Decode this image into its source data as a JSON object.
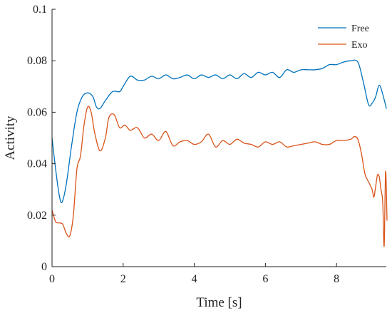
{
  "chart_data": {
    "type": "line",
    "title": "",
    "xlabel": "Time [s]",
    "ylabel": "Activity",
    "xlim": [
      0,
      9.4
    ],
    "ylim": [
      0,
      0.1
    ],
    "xticks": [
      0,
      2,
      4,
      6,
      8
    ],
    "xtick_labels": [
      "0",
      "2",
      "4",
      "6",
      "8"
    ],
    "yticks": [
      0,
      0.02,
      0.04,
      0.06,
      0.08,
      0.1
    ],
    "ytick_labels": [
      "0",
      "0.02",
      "0.04",
      "0.06",
      "0.08",
      "0.1"
    ],
    "grid": false,
    "legend_position": "top-right",
    "series": [
      {
        "name": "Free",
        "color": "#0072BD",
        "x": [
          0,
          0.1,
          0.2,
          0.28,
          0.4,
          0.55,
          0.7,
          0.85,
          1.0,
          1.15,
          1.25,
          1.35,
          1.5,
          1.7,
          1.9,
          2.0,
          2.2,
          2.4,
          2.6,
          2.8,
          3.0,
          3.2,
          3.4,
          3.6,
          3.8,
          4.0,
          4.2,
          4.4,
          4.6,
          4.8,
          5.0,
          5.2,
          5.4,
          5.6,
          5.8,
          6.0,
          6.2,
          6.4,
          6.6,
          6.8,
          7.0,
          7.2,
          7.4,
          7.6,
          7.8,
          8.0,
          8.2,
          8.4,
          8.6,
          8.75,
          8.9,
          9.0,
          9.1,
          9.2,
          9.3,
          9.4
        ],
        "values": [
          0.05,
          0.038,
          0.028,
          0.025,
          0.032,
          0.047,
          0.06,
          0.066,
          0.0675,
          0.066,
          0.062,
          0.0615,
          0.0645,
          0.068,
          0.068,
          0.07,
          0.074,
          0.0725,
          0.0725,
          0.074,
          0.073,
          0.0745,
          0.073,
          0.0735,
          0.0745,
          0.073,
          0.0745,
          0.0735,
          0.0745,
          0.073,
          0.0745,
          0.073,
          0.075,
          0.0735,
          0.0755,
          0.0745,
          0.0755,
          0.0735,
          0.0765,
          0.0755,
          0.0765,
          0.0765,
          0.0765,
          0.077,
          0.0785,
          0.0785,
          0.0795,
          0.08,
          0.0795,
          0.072,
          0.063,
          0.0635,
          0.066,
          0.0705,
          0.067,
          0.0615
        ]
      },
      {
        "name": "Exo",
        "color": "#D95319",
        "x": [
          0,
          0.1,
          0.2,
          0.3,
          0.4,
          0.5,
          0.6,
          0.7,
          0.8,
          0.9,
          1.0,
          1.1,
          1.2,
          1.35,
          1.5,
          1.6,
          1.75,
          1.9,
          2.05,
          2.2,
          2.4,
          2.6,
          2.8,
          3.0,
          3.2,
          3.4,
          3.6,
          3.8,
          4.0,
          4.2,
          4.4,
          4.6,
          4.8,
          5.0,
          5.2,
          5.4,
          5.6,
          5.8,
          6.0,
          6.2,
          6.4,
          6.6,
          6.8,
          7.0,
          7.2,
          7.4,
          7.6,
          7.8,
          8.0,
          8.2,
          8.4,
          8.5,
          8.6,
          8.7,
          8.8,
          8.9,
          9.0,
          9.05,
          9.1,
          9.15,
          9.2,
          9.25,
          9.3,
          9.34,
          9.38,
          9.42
        ],
        "values": [
          0.022,
          0.0175,
          0.017,
          0.0165,
          0.013,
          0.012,
          0.02,
          0.038,
          0.043,
          0.055,
          0.062,
          0.06,
          0.052,
          0.045,
          0.05,
          0.058,
          0.059,
          0.054,
          0.055,
          0.053,
          0.054,
          0.05,
          0.0515,
          0.049,
          0.0525,
          0.047,
          0.0485,
          0.049,
          0.0475,
          0.0485,
          0.0515,
          0.0465,
          0.049,
          0.0475,
          0.0495,
          0.048,
          0.0475,
          0.0465,
          0.0485,
          0.0475,
          0.0485,
          0.0465,
          0.047,
          0.0475,
          0.048,
          0.0485,
          0.0475,
          0.0475,
          0.049,
          0.049,
          0.0495,
          0.0505,
          0.0495,
          0.044,
          0.036,
          0.033,
          0.03,
          0.027,
          0.031,
          0.0355,
          0.035,
          0.03,
          0.025,
          0.008,
          0.037,
          0.018
        ]
      }
    ]
  }
}
